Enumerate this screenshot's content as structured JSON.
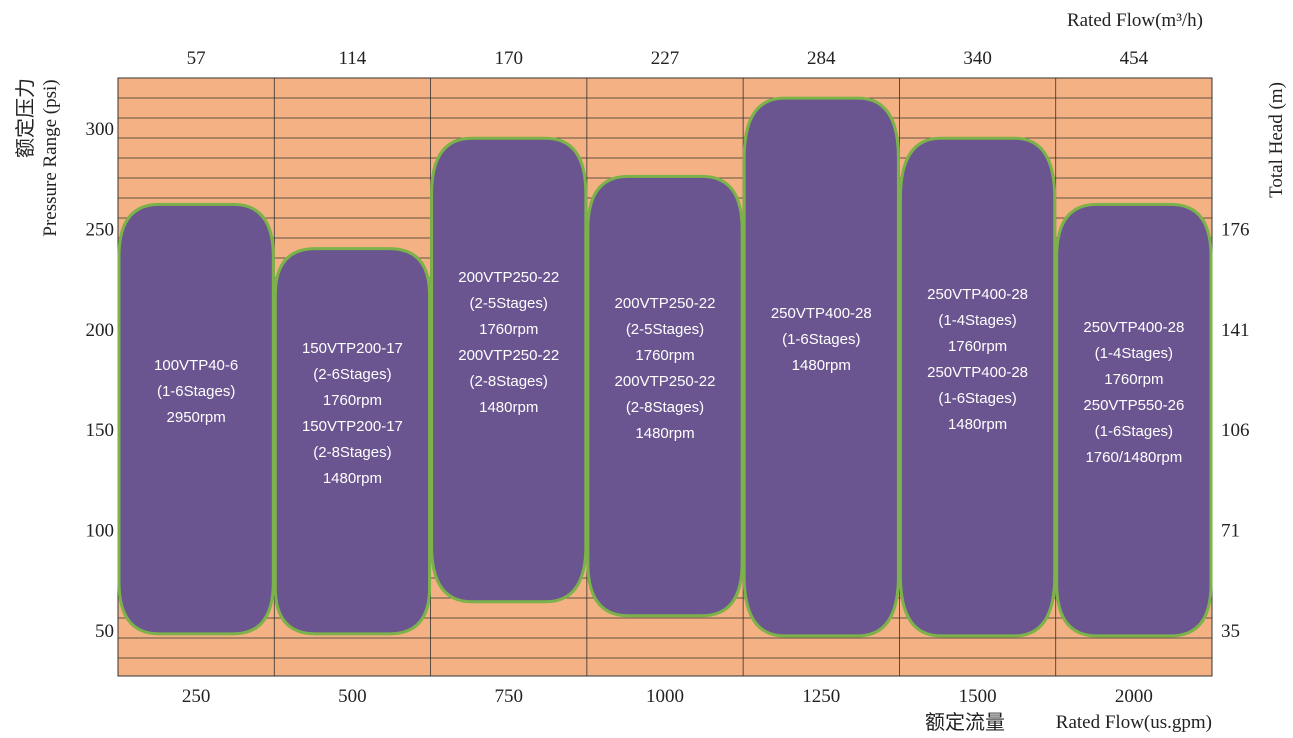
{
  "chart_data": {
    "type": "area",
    "title": "",
    "top_axis": {
      "label": "Rated Flow(m³/h)",
      "categories": [
        "57",
        "114",
        "170",
        "227",
        "284",
        "340",
        "454"
      ]
    },
    "bottom_axis": {
      "label_cn": "额定流量",
      "label_en": "Rated Flow(us.gpm)",
      "categories": [
        "250",
        "500",
        "750",
        "1000",
        "1250",
        "1500",
        "2000"
      ]
    },
    "left_axis": {
      "label_cn": "额定压力",
      "label_en": "Pressure  Range (psi)",
      "ticks": [
        50,
        100,
        150,
        200,
        250,
        300
      ],
      "ylim": [
        27,
        325
      ]
    },
    "right_axis": {
      "label": "Total  Head (m)",
      "ticks": [
        {
          "psi": 50,
          "label": "35"
        },
        {
          "psi": 100,
          "label": "71"
        },
        {
          "psi": 150,
          "label": "106"
        },
        {
          "psi": 200,
          "label": "141"
        },
        {
          "psi": 250,
          "label": "176"
        }
      ]
    },
    "grid": true,
    "colors": {
      "background": "#F4B183",
      "region_fill": "#6A5590",
      "region_border": "#7CB24A",
      "grid_line": "#333333",
      "text": "#222222"
    },
    "regions": [
      {
        "column": 0,
        "min_psi": 48,
        "max_psi": 262,
        "lines": [
          "100VTP40-6",
          "(1-6Stages)",
          "2950rpm"
        ]
      },
      {
        "column": 1,
        "min_psi": 48,
        "max_psi": 240,
        "lines": [
          "150VTP200-17",
          "(2-6Stages)",
          "1760rpm",
          "150VTP200-17",
          "(2-8Stages)",
          "1480rpm"
        ]
      },
      {
        "column": 2,
        "min_psi": 64,
        "max_psi": 295,
        "lines": [
          "200VTP250-22",
          "(2-5Stages)",
          "1760rpm",
          "200VTP250-22",
          "(2-8Stages)",
          "1480rpm"
        ]
      },
      {
        "column": 3,
        "min_psi": 57,
        "max_psi": 276,
        "lines": [
          "200VTP250-22",
          "(2-5Stages)",
          "1760rpm",
          "200VTP250-22",
          "(2-8Stages)",
          "1480rpm"
        ]
      },
      {
        "column": 4,
        "min_psi": 47,
        "max_psi": 315,
        "lines": [
          "250VTP400-28",
          "(1-6Stages)",
          "1480rpm"
        ]
      },
      {
        "column": 5,
        "min_psi": 47,
        "max_psi": 295,
        "lines": [
          "250VTP400-28",
          "(1-4Stages)",
          "1760rpm",
          "250VTP400-28",
          "(1-6Stages)",
          "1480rpm"
        ]
      },
      {
        "column": 6,
        "min_psi": 47,
        "max_psi": 262,
        "lines": [
          "250VTP400-28",
          "(1-4Stages)",
          "1760rpm",
          "250VTP550-26",
          "(1-6Stages)",
          "1760/1480rpm"
        ]
      }
    ]
  }
}
